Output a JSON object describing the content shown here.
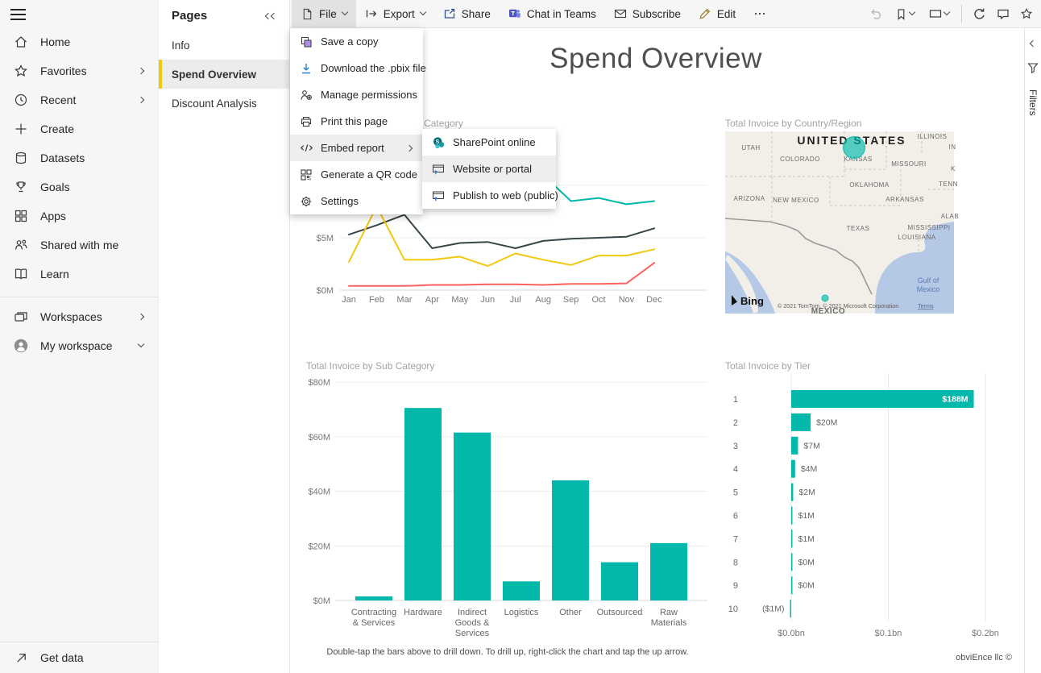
{
  "topbar": {
    "items": [
      {
        "id": "file",
        "label": "File",
        "icon": "file-icon",
        "chevron": true,
        "active": true
      },
      {
        "id": "export",
        "label": "Export",
        "icon": "export-icon",
        "chevron": true
      },
      {
        "id": "share",
        "label": "Share",
        "icon": "share-icon"
      },
      {
        "id": "chat-in-teams",
        "label": "Chat in Teams",
        "icon": "teams-icon"
      },
      {
        "id": "subscribe",
        "label": "Subscribe",
        "icon": "envelope-icon"
      },
      {
        "id": "edit",
        "label": "Edit",
        "icon": "pencil-icon"
      },
      {
        "id": "more-options",
        "label": "",
        "icon": "more-icon"
      }
    ]
  },
  "sidebar": {
    "items": [
      {
        "label": "Home",
        "icon": "home-icon"
      },
      {
        "label": "Favorites",
        "icon": "favorites-icon",
        "expandable": true
      },
      {
        "label": "Recent",
        "icon": "recent-icon",
        "expandable": true
      },
      {
        "label": "Create",
        "icon": "create-icon"
      },
      {
        "label": "Datasets",
        "icon": "datasets-icon"
      },
      {
        "label": "Goals",
        "icon": "goals-icon"
      },
      {
        "label": "Apps",
        "icon": "apps-icon"
      },
      {
        "label": "Shared with me",
        "icon": "shared-icon"
      },
      {
        "label": "Learn",
        "icon": "learn-icon"
      }
    ],
    "workspace_items": [
      {
        "label": "Workspaces",
        "icon": "workspaces-icon",
        "expandable": true
      },
      {
        "label": "My workspace",
        "icon": "avatar-icon",
        "collapsible": true
      }
    ],
    "footer_item": {
      "label": "Get data",
      "icon": "get-data-icon"
    }
  },
  "pages_panel": {
    "title": "Pages",
    "items": [
      {
        "label": "Info"
      },
      {
        "label": "Spend Overview",
        "active": true
      },
      {
        "label": "Discount Analysis"
      }
    ]
  },
  "file_menu": {
    "items": [
      {
        "label": "Save a copy",
        "icon": "copy-icon"
      },
      {
        "label": "Download the .pbix file",
        "icon": "download-icon"
      },
      {
        "label": "Manage permissions",
        "icon": "permissions-icon"
      },
      {
        "label": "Print this page",
        "icon": "printer-icon"
      },
      {
        "label": "Embed report",
        "icon": "code-icon",
        "highlighted": true,
        "has_submenu": true
      },
      {
        "label": "Generate a QR code",
        "icon": "qr-icon"
      },
      {
        "label": "Settings",
        "icon": "gear-icon"
      }
    ]
  },
  "embed_submenu": {
    "items": [
      {
        "label": "SharePoint online",
        "icon": "sharepoint-icon"
      },
      {
        "label": "Website or portal",
        "icon": "website-icon",
        "highlighted": true
      },
      {
        "label": "Publish to web (public)",
        "icon": "publish-web-icon"
      }
    ]
  },
  "report": {
    "page_title": "Spend Overview",
    "drill_note": "Double-tap the bars above to drill down. To drill up, right-click the chart and tap the up arrow.",
    "credit": "obviEnce llc ©"
  },
  "filters_rail": {
    "label": "Filters"
  },
  "colors": {
    "accent_teal": "#01B8AA",
    "highlight_yellow": "#F2C80F",
    "series_dark": "#374649",
    "series_red": "#FD625E"
  },
  "chart_data": [
    {
      "id": "invoice-by-month",
      "type": "line",
      "title": "Total Invoice by Month and Category",
      "x": [
        "Jan",
        "Feb",
        "Mar",
        "Apr",
        "May",
        "Jun",
        "Jul",
        "Aug",
        "Sep",
        "Oct",
        "Nov",
        "Dec"
      ],
      "yticks": [
        {
          "label": "$0M",
          "value": 0
        },
        {
          "label": "$5M",
          "value": 5
        },
        {
          "label": "$10M",
          "value": 10
        }
      ],
      "ylim": [
        0,
        11.5
      ],
      "series": [
        {
          "name": "teal-series",
          "color": "#01B8AA",
          "values": [
            null,
            null,
            null,
            null,
            null,
            null,
            null,
            11,
            8.5,
            8.8,
            8.2,
            8.5
          ]
        },
        {
          "name": "dark-series",
          "color": "#374649",
          "values": [
            5.3,
            6.2,
            7.2,
            4,
            4.5,
            4.6,
            4,
            4.7,
            4.9,
            5,
            5.1,
            5.9
          ]
        },
        {
          "name": "yellow-series",
          "color": "#F2C80F",
          "values": [
            2.7,
            8,
            2.9,
            2.9,
            3.2,
            2.3,
            3.5,
            2.9,
            2.4,
            3.3,
            3.3,
            3.9
          ]
        },
        {
          "name": "red-series",
          "color": "#FD625E",
          "values": [
            0.4,
            0.4,
            0.4,
            0.5,
            0.5,
            0.55,
            0.55,
            0.5,
            0.6,
            0.6,
            0.65,
            2.6
          ]
        }
      ]
    },
    {
      "id": "invoice-by-country",
      "type": "map",
      "title": "Total Invoice by Country/Region",
      "country_label": "UNITED STATES",
      "state_labels": [
        {
          "text": "UTAH",
          "x": 32,
          "y": 23
        },
        {
          "text": "COLORADO",
          "x": 93,
          "y": 37
        },
        {
          "text": "KANSAS",
          "x": 165,
          "y": 37
        },
        {
          "text": "MISSOURI",
          "x": 228,
          "y": 43
        },
        {
          "text": "ILLINOIS",
          "x": 257,
          "y": 9
        },
        {
          "text": "IN",
          "x": 282,
          "y": 22
        },
        {
          "text": "K",
          "x": 283,
          "y": 49
        },
        {
          "text": "OKLAHOMA",
          "x": 179,
          "y": 69
        },
        {
          "text": "ARKANSAS",
          "x": 223,
          "y": 87
        },
        {
          "text": "TENN",
          "x": 277,
          "y": 68
        },
        {
          "text": "ARIZONA",
          "x": 30,
          "y": 86
        },
        {
          "text": "NEW MEXICO",
          "x": 88,
          "y": 88
        },
        {
          "text": "TEXAS",
          "x": 165,
          "y": 123
        },
        {
          "text": "MISSISSIPPI",
          "x": 253,
          "y": 122
        },
        {
          "text": "LOUISIANA",
          "x": 238,
          "y": 134
        },
        {
          "text": "ALAB",
          "x": 279,
          "y": 108
        },
        {
          "text": "MEXICO",
          "x": 128,
          "y": 226,
          "bold": true
        }
      ],
      "water_labels": [
        {
          "text": "Gulf of",
          "x": 252,
          "y": 188
        },
        {
          "text": "Mexico",
          "x": 252,
          "y": 199
        }
      ],
      "bubbles": [
        {
          "x": 160,
          "y": 20,
          "r": 13.5
        },
        {
          "x": 124,
          "y": 207,
          "r": 4
        }
      ],
      "bubble_color": "#01B8AA",
      "logo_text": "Bing",
      "attribution": "© 2021 TomTom, © 2021 Microsoft Corporation",
      "terms_label": "Terms"
    },
    {
      "id": "invoice-by-subcategory",
      "type": "bar",
      "title": "Total Invoice by Sub Category",
      "categories": [
        "Contracting & Services",
        "Hardware",
        "Indirect Goods & Services",
        "Logistics",
        "Other",
        "Outsourced",
        "Raw Materials"
      ],
      "category_label_lines": [
        [
          "Contracting",
          "& Services"
        ],
        [
          "Hardware"
        ],
        [
          "Indirect",
          "Goods &",
          "Services"
        ],
        [
          "Logistics"
        ],
        [
          "Other"
        ],
        [
          "Outsourced"
        ],
        [
          "Raw",
          "Materials"
        ]
      ],
      "values": [
        1.5,
        70.5,
        61.5,
        7,
        44,
        14,
        21
      ],
      "unit": "$M",
      "yticks": [
        {
          "label": "$0M",
          "value": 0
        },
        {
          "label": "$20M",
          "value": 20
        },
        {
          "label": "$40M",
          "value": 40
        },
        {
          "label": "$60M",
          "value": 60
        },
        {
          "label": "$80M",
          "value": 80
        }
      ],
      "ylim": [
        0,
        80
      ]
    },
    {
      "id": "invoice-by-tier",
      "type": "bar-horizontal",
      "title": "Total Invoice by Tier",
      "categories": [
        "1",
        "2",
        "3",
        "4",
        "5",
        "6",
        "7",
        "8",
        "9",
        "10"
      ],
      "values": [
        188,
        20,
        7,
        4,
        2,
        1,
        1,
        0.4,
        0.4,
        -1
      ],
      "unit": "$M",
      "bar_labels": [
        "$188M",
        "$20M",
        "$7M",
        "$4M",
        "$2M",
        "$1M",
        "$1M",
        "$0M",
        "$0M",
        "($1M)"
      ],
      "xticks": [
        {
          "label": "$0.0bn",
          "value": 0
        },
        {
          "label": "$0.1bn",
          "value": 100
        },
        {
          "label": "$0.2bn",
          "value": 200
        }
      ],
      "xlim": [
        -10,
        200
      ]
    }
  ]
}
